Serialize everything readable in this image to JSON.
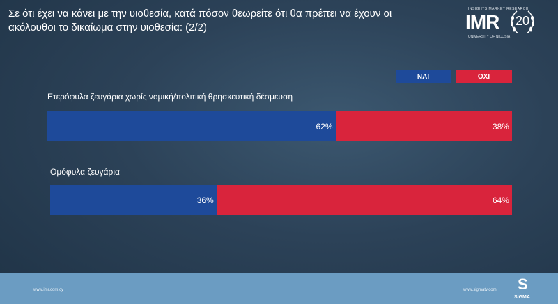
{
  "header": {
    "title": "Σε ότι έχει να κάνει με την υιοθεσία, κατά πόσον θεωρείτε ότι θα πρέπει να έχουν οι ακόλουθοι το δικαίωμα στην υιοθεσία: (2/2)"
  },
  "logo": {
    "tagline": "INSIGHTS MARKET RESEARCH",
    "mark": "IMR",
    "university": "UNIVERSITY OF NICOSIA",
    "anniversary": "20"
  },
  "footer": {
    "left_url": "www.imr.com.cy",
    "right_url": "www.sigmatv.com",
    "brand": "SIGMA",
    "brand_glyph": "S"
  },
  "colors": {
    "yes": "#1e4a9a",
    "no": "#d9243c",
    "footer": "#6b9cc2"
  },
  "chart_data": {
    "type": "bar",
    "orientation": "horizontal-stacked",
    "categories": [
      "Ετερόφυλα ζευγάρια χωρίς νομική/πολιτική θρησκευτική δέσμευση",
      "Ομόφυλα ζευγάρια"
    ],
    "series": [
      {
        "name": "ΝΑΙ",
        "values": [
          62,
          36
        ],
        "labels": [
          "62%",
          "36%"
        ]
      },
      {
        "name": "ΟΧΙ",
        "values": [
          38,
          64
        ],
        "labels": [
          "38%",
          "64%"
        ]
      }
    ],
    "ylim": [
      0,
      100
    ],
    "legend": "top-right"
  }
}
